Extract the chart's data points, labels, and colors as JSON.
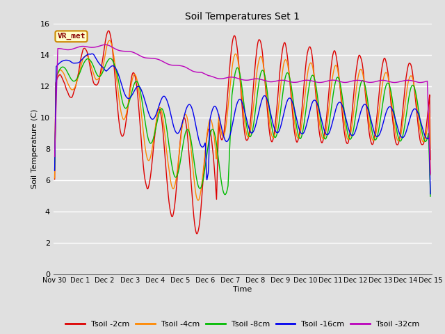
{
  "title": "Soil Temperatures Set 1",
  "xlabel": "Time",
  "ylabel": "Soil Temperature (C)",
  "ylim": [
    0,
    16
  ],
  "yticks": [
    0,
    2,
    4,
    6,
    8,
    10,
    12,
    14,
    16
  ],
  "background_color": "#d8d8d8",
  "plot_bg_color": "#e0e0e0",
  "annotation_text": "VR_met",
  "annotation_bg": "#ffffcc",
  "annotation_border": "#cc8800",
  "annotation_text_color": "#880000",
  "series": [
    {
      "label": "Tsoil -2cm",
      "color": "#dd0000"
    },
    {
      "label": "Tsoil -4cm",
      "color": "#ff8800"
    },
    {
      "label": "Tsoil -8cm",
      "color": "#00bb00"
    },
    {
      "label": "Tsoil -16cm",
      "color": "#0000ee"
    },
    {
      "label": "Tsoil -32cm",
      "color": "#bb00bb"
    }
  ],
  "xtick_labels": [
    "Nov 30",
    "Dec 1",
    "Dec 2",
    "Dec 3",
    "Dec 4",
    "Dec 5",
    "Dec 6",
    "Dec 7",
    "Dec 8",
    "Dec 9",
    "Dec 10",
    "Dec 11",
    "Dec 12",
    "Dec 13",
    "Dec 14",
    "Dec 15"
  ],
  "n_points": 1440
}
